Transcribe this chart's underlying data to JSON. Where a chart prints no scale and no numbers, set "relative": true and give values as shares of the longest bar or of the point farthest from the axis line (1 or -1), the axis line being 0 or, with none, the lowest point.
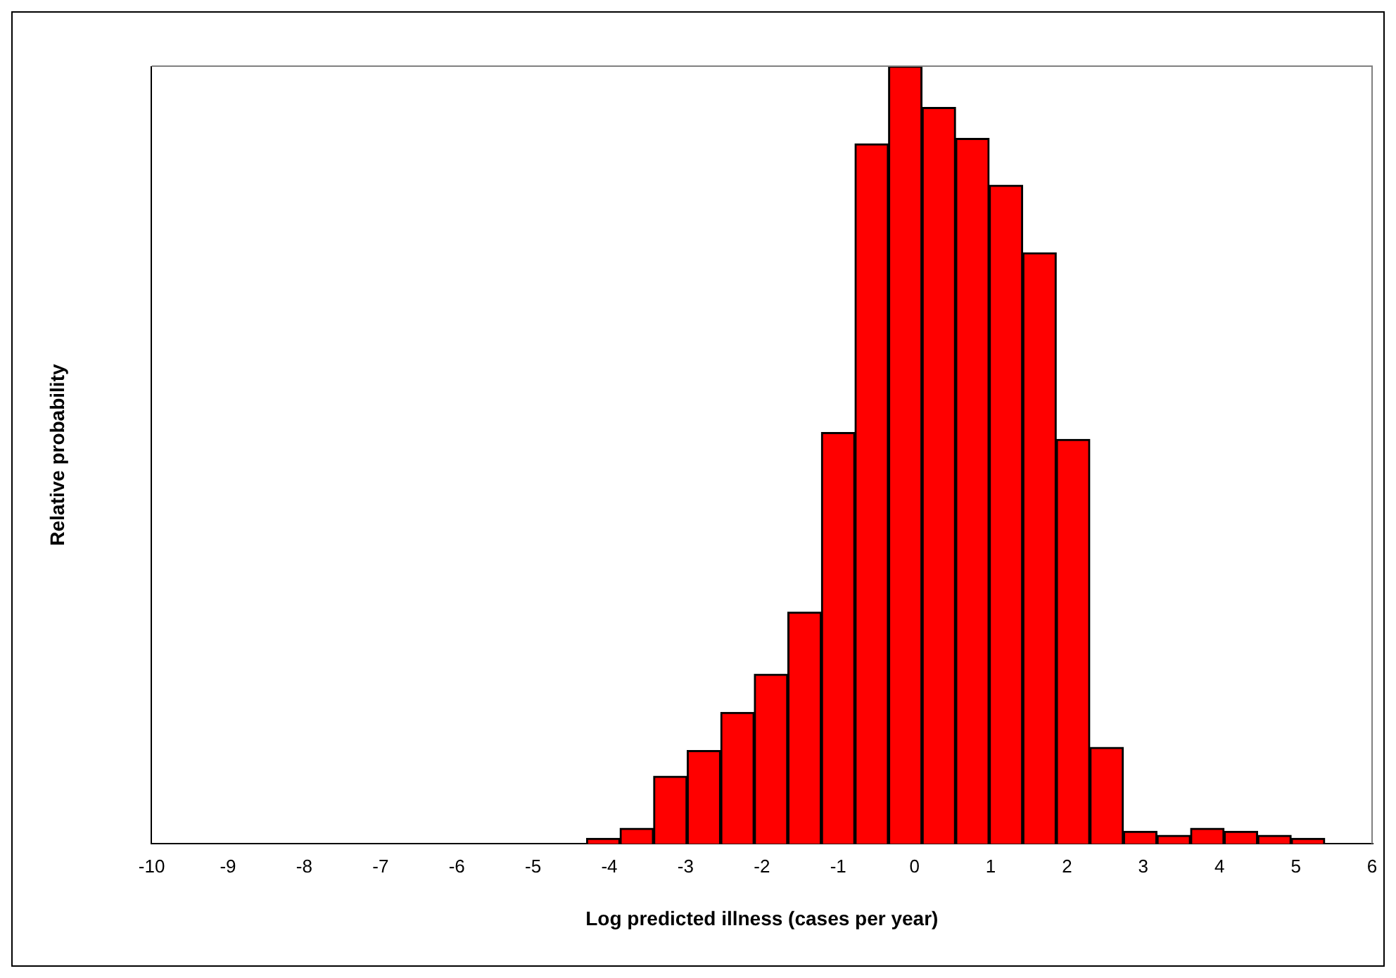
{
  "chart_data": {
    "type": "bar",
    "xlabel": "Log predicted illness (cases per year)",
    "ylabel": "Relative probability",
    "relative": true,
    "color": "#ff0000",
    "x": [
      -4.08,
      -3.64,
      -3.2,
      -2.76,
      -2.32,
      -1.88,
      -1.44,
      -1.0,
      -0.56,
      -0.12,
      0.32,
      0.76,
      1.2,
      1.64,
      2.08,
      2.52,
      2.96,
      3.4,
      3.84,
      4.28,
      4.72,
      5.16
    ],
    "values": [
      0.007,
      0.02,
      0.087,
      0.12,
      0.169,
      0.218,
      0.298,
      0.529,
      0.9,
      1,
      0.947,
      0.907,
      0.847,
      0.76,
      0.52,
      0.124,
      0.016,
      0.011,
      0.02,
      0.016,
      0.011,
      0.007
    ],
    "xlim": [
      -10,
      6
    ],
    "xticks": [
      -10,
      -9,
      -8,
      -7,
      -6,
      -5,
      -4,
      -3,
      -2,
      -1,
      0,
      1,
      2,
      3,
      4,
      5,
      6
    ]
  }
}
